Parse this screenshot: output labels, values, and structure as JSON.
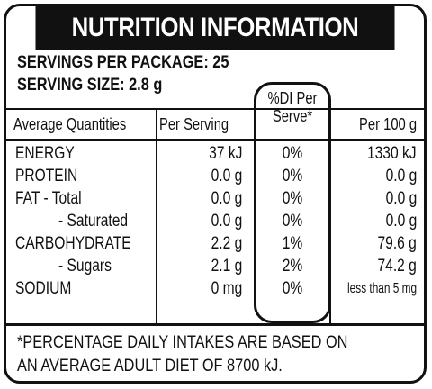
{
  "title": "NUTRITION INFORMATION",
  "servings": {
    "per_package": "SERVINGS PER PACKAGE: 25",
    "serving_size": "SERVING SIZE: 2.8 g"
  },
  "columns": {
    "average": "Average Quantities",
    "per_serving": "Per Serving",
    "di": "%DI Per\nServe*",
    "per_100": "Per 100 g"
  },
  "rows": [
    {
      "name": "ENERGY",
      "per_serving": "37 kJ",
      "di": "0%",
      "per_100": "1330 kJ"
    },
    {
      "name": "PROTEIN",
      "per_serving": "0.0 g",
      "di": "0%",
      "per_100": "0.0 g"
    },
    {
      "name": "FAT - Total",
      "per_serving": "0.0 g",
      "di": "0%",
      "per_100": "0.0 g"
    },
    {
      "name": "- Saturated",
      "per_serving": "0.0 g",
      "di": "0%",
      "per_100": "0.0 g"
    },
    {
      "name": "CARBOHYDRATE",
      "per_serving": "2.2 g",
      "di": "1%",
      "per_100": "79.6 g"
    },
    {
      "name": "- Sugars",
      "per_serving": "2.1 g",
      "di": "2%",
      "per_100": "74.2 g"
    },
    {
      "name": "SODIUM",
      "per_serving": "0 mg",
      "di": "0%",
      "per_100": "less than 5 mg"
    }
  ],
  "footnote": {
    "line1": "*PERCENTAGE DAILY INTAKES ARE BASED ON",
    "line2": "AN AVERAGE ADULT DIET OF 8700 kJ."
  }
}
